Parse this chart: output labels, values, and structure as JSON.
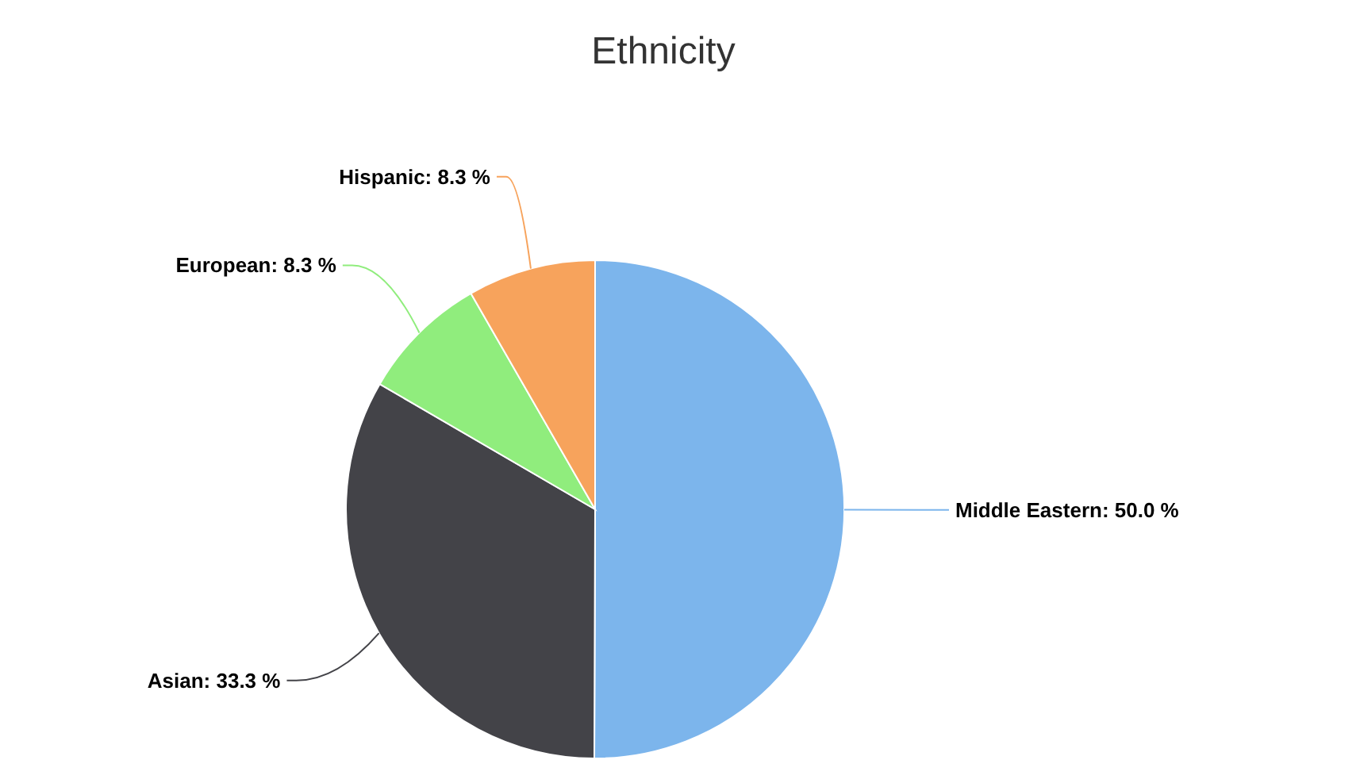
{
  "chart_data": {
    "type": "pie",
    "title": "Ethnicity",
    "categories": [
      "Middle Eastern",
      "Asian",
      "European",
      "Hispanic"
    ],
    "values": [
      50.0,
      33.3,
      8.3,
      8.3
    ],
    "value_labels": [
      "50.0 %",
      "33.3 %",
      "8.3 %",
      "8.3 %"
    ],
    "colors": [
      "#7cb5ec",
      "#434348",
      "#90ed7d",
      "#f7a35c"
    ]
  }
}
